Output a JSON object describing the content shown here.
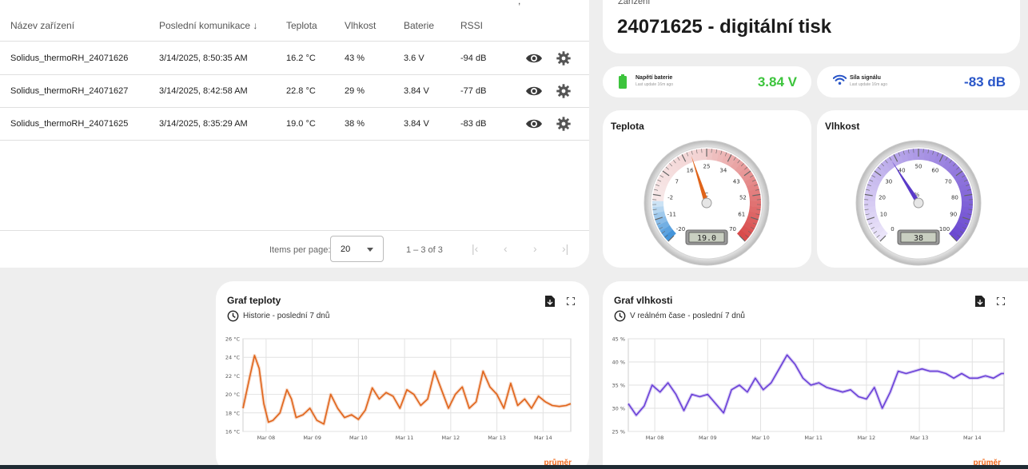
{
  "table": {
    "columns": [
      "Název zařízení",
      "Poslední komunikace",
      "Teplota",
      "Vlhkost",
      "Baterie",
      "RSSI"
    ],
    "sort_arrow": "↓",
    "rows": [
      {
        "name": "Solidus_thermoRH_24071626",
        "last": "3/14/2025, 8:50:35 AM",
        "temp": "16.2 °C",
        "hum": "43 %",
        "bat": "3.6 V",
        "rssi": "-94 dB"
      },
      {
        "name": "Solidus_thermoRH_24071627",
        "last": "3/14/2025, 8:42:58 AM",
        "temp": "22.8 °C",
        "hum": "29 %",
        "bat": "3.84 V",
        "rssi": "-77 dB"
      },
      {
        "name": "Solidus_thermoRH_24071625",
        "last": "3/14/2025, 8:35:29 AM",
        "temp": "19.0 °C",
        "hum": "38 %",
        "bat": "3.84 V",
        "rssi": "-83 dB"
      }
    ],
    "paginator": {
      "items_per_page_label": "Items per page:",
      "page_size": "20",
      "range": "1 – 3 of 3"
    }
  },
  "device": {
    "label": "Zařízení",
    "title": "24071625 - digitální tisk"
  },
  "battery": {
    "title": "Napětí baterie",
    "sub": "Last update 16m ago",
    "value": "3.84 V",
    "color": "#3cc43c"
  },
  "signal": {
    "title": "Síla signálu",
    "sub": "Last update 16m ago",
    "value": "-83 dB",
    "color": "#2855c8"
  },
  "gauge_temp": {
    "title": "Teplota",
    "unit": "°C",
    "ticks": [
      "-20",
      "-11",
      "-2",
      "7",
      "16",
      "25",
      "34",
      "43",
      "52",
      "61",
      "70"
    ],
    "value": 19.0,
    "min": -20,
    "max": 70,
    "display": "19.0"
  },
  "gauge_hum": {
    "title": "Vlhkost",
    "unit": "%",
    "ticks": [
      "0",
      "10",
      "20",
      "30",
      "40",
      "50",
      "60",
      "70",
      "80",
      "90",
      "100"
    ],
    "value": 38,
    "min": 0,
    "max": 100,
    "display": "38"
  },
  "chart_data": [
    {
      "type": "line",
      "title": "Graf teploty",
      "subtitle": "Historie - poslední 7 dnů",
      "legend": "průměr",
      "color": "#e0641a",
      "yticks": [
        "16 °C",
        "18 °C",
        "20 °C",
        "22 °C",
        "24 °C",
        "26 °C"
      ],
      "ylim": [
        16,
        26
      ],
      "xticks": [
        "Mar 08",
        "Mar 09",
        "Mar 10",
        "Mar 11",
        "Mar 12",
        "Mar 13",
        "Mar 14"
      ],
      "xlim": [
        0,
        7.1
      ],
      "x": [
        0.0,
        0.15,
        0.25,
        0.35,
        0.45,
        0.55,
        0.65,
        0.8,
        0.95,
        1.05,
        1.15,
        1.3,
        1.45,
        1.6,
        1.75,
        1.9,
        2.05,
        2.2,
        2.35,
        2.5,
        2.65,
        2.8,
        2.95,
        3.1,
        3.25,
        3.4,
        3.55,
        3.7,
        3.85,
        4.0,
        4.15,
        4.3,
        4.45,
        4.6,
        4.75,
        4.9,
        5.05,
        5.2,
        5.35,
        5.5,
        5.65,
        5.8,
        5.95,
        6.1,
        6.25,
        6.4,
        6.55,
        6.7,
        6.85,
        7.0,
        7.1
      ],
      "y": [
        18.5,
        22.0,
        24.2,
        22.8,
        19.0,
        17.0,
        17.2,
        18.0,
        20.5,
        19.5,
        17.5,
        17.8,
        18.5,
        17.2,
        16.8,
        20.0,
        18.5,
        17.5,
        17.8,
        17.3,
        18.3,
        20.7,
        19.5,
        20.2,
        19.8,
        18.5,
        20.5,
        20.0,
        18.8,
        19.5,
        22.5,
        20.5,
        18.5,
        20.0,
        20.8,
        18.5,
        19.2,
        22.5,
        20.8,
        20.0,
        18.5,
        21.2,
        18.8,
        19.5,
        18.5,
        19.8,
        19.2,
        18.8,
        18.7,
        18.8,
        19.0
      ]
    },
    {
      "type": "line",
      "title": "Graf vlhkosti",
      "subtitle": "V reálném čase - poslední 7 dnů",
      "legend": "průměr",
      "color": "#6a40d8",
      "yticks": [
        "25 %",
        "30 %",
        "35 %",
        "40 %",
        "45 %"
      ],
      "ylim": [
        25,
        45
      ],
      "xticks": [
        "Mar 08",
        "Mar 09",
        "Mar 10",
        "Mar 11",
        "Mar 12",
        "Mar 13",
        "Mar 14"
      ],
      "xlim": [
        0,
        7.1
      ],
      "x": [
        0.0,
        0.15,
        0.3,
        0.45,
        0.6,
        0.75,
        0.9,
        1.05,
        1.2,
        1.35,
        1.5,
        1.65,
        1.8,
        1.95,
        2.1,
        2.25,
        2.4,
        2.55,
        2.7,
        2.85,
        3.0,
        3.15,
        3.3,
        3.45,
        3.6,
        3.75,
        3.9,
        4.05,
        4.2,
        4.35,
        4.5,
        4.65,
        4.8,
        4.95,
        5.1,
        5.25,
        5.4,
        5.55,
        5.7,
        5.85,
        6.0,
        6.15,
        6.3,
        6.45,
        6.6,
        6.75,
        6.9,
        7.05,
        7.1
      ],
      "y": [
        31.0,
        28.5,
        30.5,
        35.0,
        33.5,
        35.5,
        33.0,
        29.5,
        33.0,
        32.5,
        33.0,
        31.0,
        29.0,
        34.0,
        35.0,
        33.5,
        36.5,
        34.0,
        35.5,
        38.5,
        41.5,
        39.5,
        36.5,
        35.0,
        35.5,
        34.5,
        34.0,
        33.5,
        34.0,
        32.5,
        32.0,
        34.5,
        30.0,
        33.5,
        38.0,
        37.5,
        38.0,
        38.5,
        38.0,
        38.0,
        37.5,
        36.5,
        37.5,
        36.5,
        36.5,
        37.0,
        36.5,
        37.5,
        37.5
      ]
    }
  ]
}
